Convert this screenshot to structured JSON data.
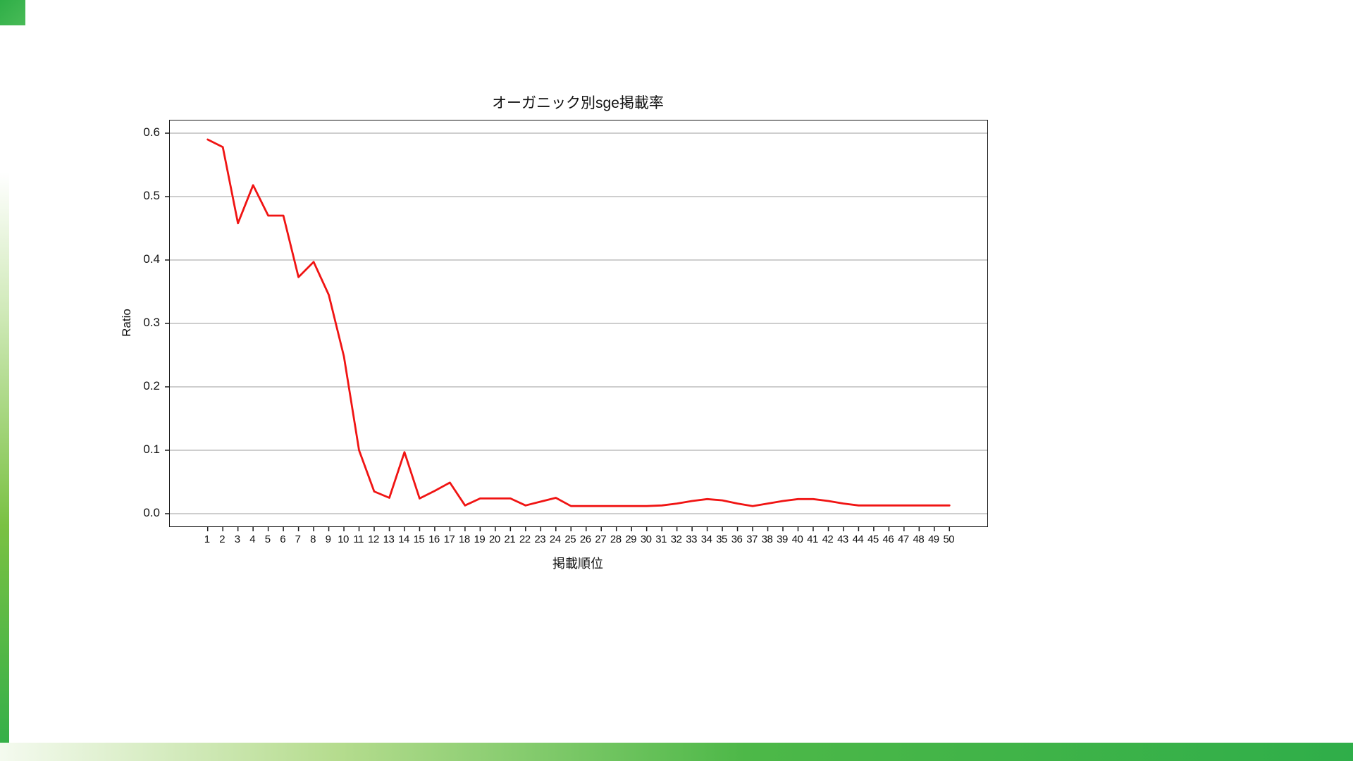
{
  "page": {
    "accent_green": "#2fae49",
    "background": "#ffffff"
  },
  "chart_data": {
    "type": "line",
    "title": "オーガニック別sge掲載率",
    "xlabel": "掲載順位",
    "ylabel": "Ratio",
    "legend": "none",
    "grid": true,
    "grid_color": "#b0b0b0",
    "line_color": "#f01413",
    "spine_color": "#1a1a1a",
    "x": [
      1,
      2,
      3,
      4,
      5,
      6,
      7,
      8,
      9,
      10,
      11,
      12,
      13,
      14,
      15,
      16,
      17,
      18,
      19,
      20,
      21,
      22,
      23,
      24,
      25,
      26,
      27,
      28,
      29,
      30,
      31,
      32,
      33,
      34,
      35,
      36,
      37,
      38,
      39,
      40,
      41,
      42,
      43,
      44,
      45,
      46,
      47,
      48,
      49,
      50
    ],
    "values": [
      0.59,
      0.578,
      0.458,
      0.518,
      0.47,
      0.47,
      0.373,
      0.397,
      0.345,
      0.248,
      0.1,
      0.035,
      0.025,
      0.097,
      0.024,
      0.036,
      0.049,
      0.013,
      0.024,
      0.024,
      0.024,
      0.013,
      0.019,
      0.025,
      0.012,
      0.012,
      0.012,
      0.012,
      0.012,
      0.012,
      0.013,
      0.016,
      0.02,
      0.023,
      0.021,
      0.016,
      0.012,
      0.016,
      0.02,
      0.023,
      0.023,
      0.02,
      0.016,
      0.013,
      0.013,
      0.013,
      0.013,
      0.013,
      0.013,
      0.013
    ],
    "yticks": [
      0.0,
      0.1,
      0.2,
      0.3,
      0.4,
      0.5,
      0.6
    ],
    "ytick_labels": [
      "0.0",
      "0.1",
      "0.2",
      "0.3",
      "0.4",
      "0.5",
      "0.6"
    ],
    "xlim": [
      -1.5,
      52.5
    ],
    "ylim": [
      -0.02,
      0.62
    ]
  }
}
